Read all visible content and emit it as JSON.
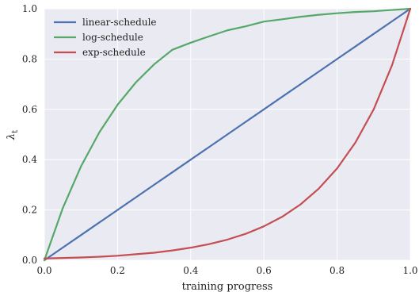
{
  "chart_data": {
    "type": "line",
    "xlabel": "training progress",
    "ylabel": "λ",
    "ylabel_subscript": "t",
    "xlim": [
      0.0,
      1.0
    ],
    "ylim": [
      0.0,
      1.0
    ],
    "xticks": [
      0.0,
      0.2,
      0.4,
      0.6,
      0.8,
      1.0
    ],
    "yticks": [
      0.0,
      0.2,
      0.4,
      0.6,
      0.8,
      1.0
    ],
    "xtick_labels": [
      "0.0",
      "0.2",
      "0.4",
      "0.6",
      "0.8",
      "1.0"
    ],
    "ytick_labels": [
      "0.0",
      "0.2",
      "0.4",
      "0.6",
      "0.8",
      "1.0"
    ],
    "grid": true,
    "legend_position": "top-left",
    "background": "#eaeaf2",
    "x": [
      0.0,
      0.05,
      0.1,
      0.15,
      0.2,
      0.25,
      0.3,
      0.35,
      0.4,
      0.45,
      0.5,
      0.55,
      0.6,
      0.65,
      0.7,
      0.75,
      0.8,
      0.85,
      0.9,
      0.95,
      1.0
    ],
    "series": [
      {
        "name": "linear-schedule",
        "color": "#4c72b0",
        "values": [
          0.0,
          0.05,
          0.1,
          0.15,
          0.2,
          0.25,
          0.3,
          0.35,
          0.4,
          0.45,
          0.5,
          0.55,
          0.6,
          0.65,
          0.7,
          0.75,
          0.8,
          0.85,
          0.9,
          0.95,
          1.0
        ]
      },
      {
        "name": "log-schedule",
        "color": "#55a868",
        "values": [
          0.0,
          0.206,
          0.373,
          0.508,
          0.618,
          0.707,
          0.779,
          0.837,
          0.865,
          0.89,
          0.914,
          0.93,
          0.949,
          0.958,
          0.968,
          0.976,
          0.982,
          0.987,
          0.99,
          0.995,
          1.0
        ]
      },
      {
        "name": "exp-schedule",
        "color": "#c44e52",
        "values": [
          0.007,
          0.009,
          0.011,
          0.014,
          0.018,
          0.024,
          0.03,
          0.039,
          0.05,
          0.064,
          0.082,
          0.105,
          0.135,
          0.173,
          0.222,
          0.285,
          0.365,
          0.468,
          0.6,
          0.775,
          1.0
        ]
      }
    ]
  }
}
